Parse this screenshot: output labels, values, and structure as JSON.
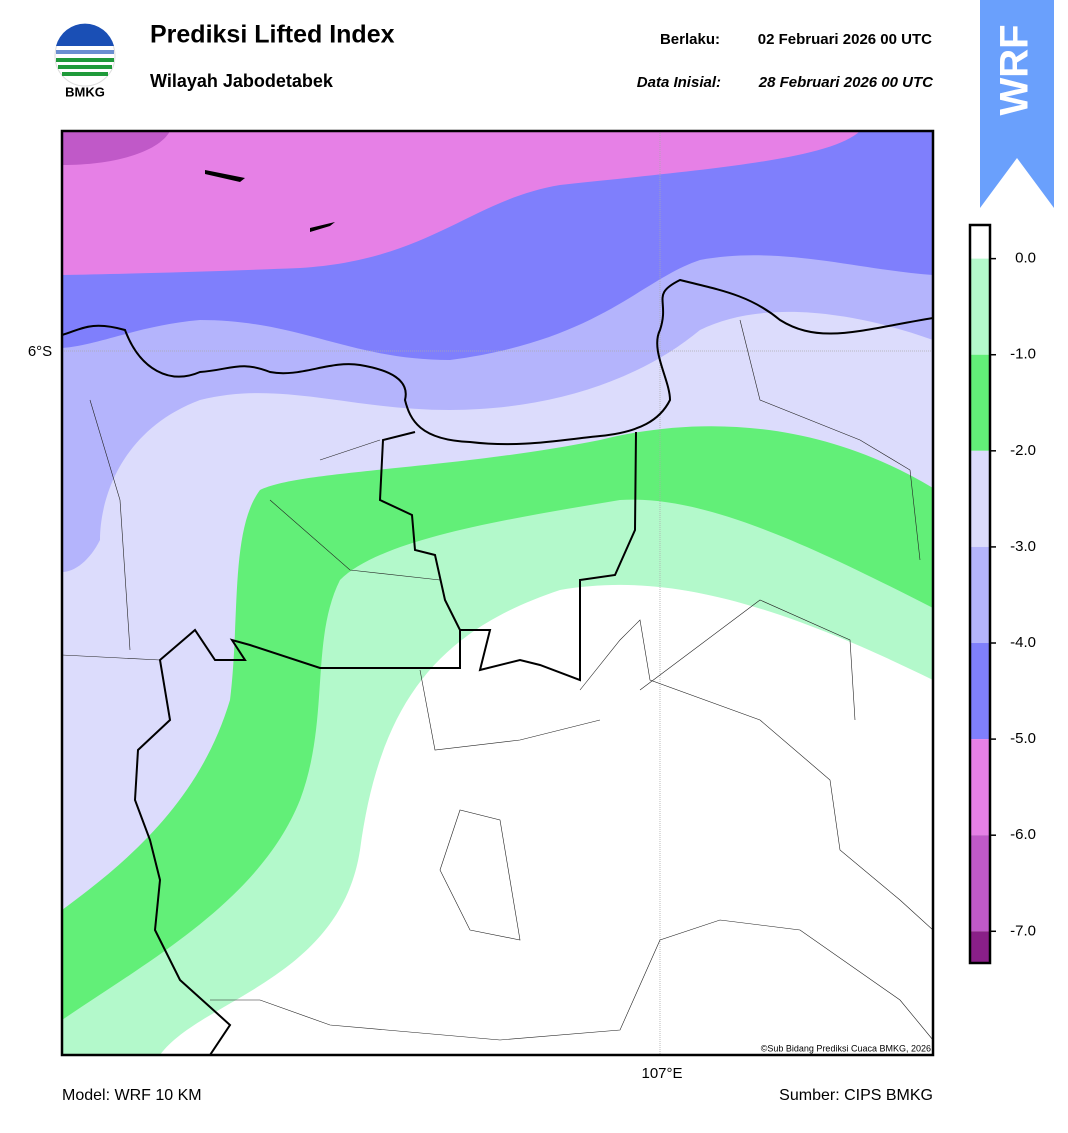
{
  "logo": {
    "text": "BMKG"
  },
  "header": {
    "title": "Prediksi Lifted Index",
    "subtitle": "Wilayah Jabodetabek",
    "valid_label": "Berlaku:",
    "valid": "02 Februari 2026 00 UTC",
    "init_label": "Data Inisial:",
    "init": "28 Februari 2026 00 UTC"
  },
  "badge": "WRF",
  "map": {
    "lat_label": "6°S",
    "lon_label": "107°E",
    "credit": "©Sub Bidang Prediksi Cuaca BMKG, 2026"
  },
  "colorbar": {
    "range": [
      0.35,
      -7.33
    ],
    "ticks": [
      {
        "value": 0,
        "label": "0.0"
      },
      {
        "value": -1,
        "label": "-1.0"
      },
      {
        "value": -2,
        "label": "-2.0"
      },
      {
        "value": -3,
        "label": "-3.0"
      },
      {
        "value": -4,
        "label": "-4.0"
      },
      {
        "value": -5,
        "label": "-5.0"
      },
      {
        "value": -6,
        "label": "-6.0"
      },
      {
        "value": -7,
        "label": "-7.0"
      }
    ],
    "colors": [
      "#ffffff",
      "#b3f9cb",
      "#62ef78",
      "#dcdcfc",
      "#b4b4fc",
      "#7f7ffc",
      "#e680e6",
      "#c059c8",
      "#8a1f88"
    ]
  },
  "footer": {
    "model": "Model: WRF 10 KM",
    "source": "Sumber: CIPS BMKG"
  }
}
